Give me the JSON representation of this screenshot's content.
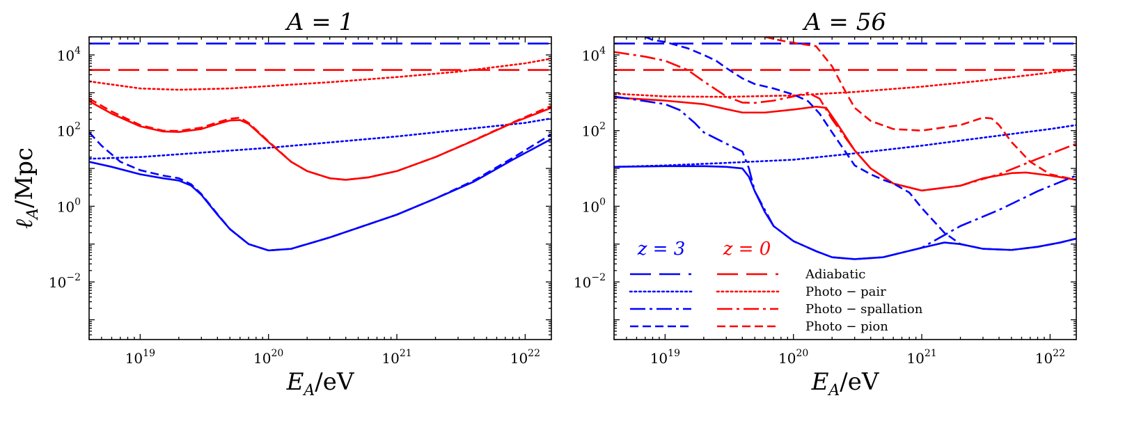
{
  "colors": {
    "z3": "#0000ff",
    "z0": "#ff0000"
  },
  "chart_data": [
    {
      "type": "line",
      "title": "A = 1",
      "xlabel": "E_A/eV",
      "ylabel": "ℓ_A/Mpc",
      "xscale": "log",
      "yscale": "log",
      "xlim": [
        4e+18,
        1.6e+22
      ],
      "ylim": [
        0.0003,
        30000
      ],
      "xticks": [
        {
          "value": 1e+19,
          "base": "10",
          "exp": "19"
        },
        {
          "value": 1e+20,
          "base": "10",
          "exp": "20"
        },
        {
          "value": 1e+21,
          "base": "10",
          "exp": "21"
        },
        {
          "value": 1e+22,
          "base": "10",
          "exp": "22"
        }
      ],
      "yticks": [
        {
          "value": 0.01,
          "base": "10",
          "exp": "−2"
        },
        {
          "value": 1,
          "base": "10",
          "exp": "0"
        },
        {
          "value": 100,
          "base": "10",
          "exp": "2"
        },
        {
          "value": 10000,
          "base": "10",
          "exp": "4"
        }
      ],
      "series": [
        {
          "name": "Adiabatic z=3",
          "color": "#0000ff",
          "style": "longdash",
          "x": [
            4e+18,
            1.6e+22
          ],
          "y": [
            20000,
            20000
          ]
        },
        {
          "name": "Adiabatic z=0",
          "color": "#ff0000",
          "style": "longdash",
          "x": [
            4e+18,
            1.6e+22
          ],
          "y": [
            4000,
            4000
          ]
        },
        {
          "name": "Photo-pair z=0",
          "color": "#ff0000",
          "style": "dotted",
          "x": [
            4e+18,
            1e+19,
            2e+19,
            5e+19,
            1e+20,
            3e+20,
            1e+21,
            3e+21,
            1e+22,
            1.6e+22
          ],
          "y": [
            2000,
            1300,
            1200,
            1300,
            1500,
            1900,
            2600,
            3600,
            6000,
            8000
          ]
        },
        {
          "name": "Photo-pair z=3",
          "color": "#0000ff",
          "style": "dotted",
          "x": [
            4e+18,
            1e+19,
            1e+20,
            1e+21,
            1e+22,
            1.6e+22
          ],
          "y": [
            18,
            20,
            35,
            70,
            160,
            210
          ]
        },
        {
          "name": "Total z=0",
          "color": "#ff0000",
          "style": "solid",
          "x": [
            4e+18,
            6e+18,
            1e+19,
            1.5e+19,
            2e+19,
            3e+19,
            4e+19,
            5e+19,
            6e+19,
            7e+19,
            8e+19,
            1e+20,
            1.5e+20,
            2e+20,
            3e+20,
            4e+20,
            6e+20,
            1e+21,
            2e+21,
            4e+21,
            8e+21,
            1.6e+22
          ],
          "y": [
            600,
            280,
            130,
            95,
            92,
            110,
            150,
            185,
            190,
            150,
            100,
            50,
            15,
            8.5,
            5.5,
            5,
            5.8,
            8.5,
            20,
            55,
            160,
            400
          ]
        },
        {
          "name": "Photo-pion z=0",
          "color": "#ff0000",
          "style": "dashed",
          "x": [
            4e+18,
            6e+18,
            1e+19,
            1.5e+19,
            2e+19,
            3e+19,
            4e+19,
            5e+19,
            6e+19,
            7e+19,
            8e+19,
            1e+20,
            1.5e+20,
            2e+20,
            3e+20,
            4e+20,
            6e+20,
            1e+21,
            2e+21,
            4e+21,
            8e+21,
            1.6e+22
          ],
          "y": [
            700,
            320,
            140,
            100,
            98,
            120,
            165,
            205,
            220,
            160,
            105,
            52,
            15,
            8.5,
            5.5,
            5,
            5.8,
            8.5,
            20,
            56,
            165,
            450
          ]
        },
        {
          "name": "Total z=3",
          "color": "#0000ff",
          "style": "solid",
          "x": [
            4e+18,
            6e+18,
            1e+19,
            1.5e+19,
            2e+19,
            2.5e+19,
            3e+19,
            4e+19,
            5e+19,
            7e+19,
            1e+20,
            1.5e+20,
            2e+20,
            3e+20,
            5e+20,
            1e+21,
            2e+21,
            4e+21,
            8e+21,
            1.6e+22
          ],
          "y": [
            15,
            11,
            7,
            5.5,
            4.8,
            3.5,
            2,
            0.6,
            0.25,
            0.1,
            0.068,
            0.075,
            0.1,
            0.15,
            0.27,
            0.6,
            1.6,
            4.5,
            17,
            60
          ]
        },
        {
          "name": "Photo-pion z=3",
          "color": "#0000ff",
          "style": "dashed",
          "x": [
            4e+18,
            5e+18,
            7e+18,
            1e+19,
            1.5e+19,
            2e+19,
            2.5e+19,
            3e+19,
            4e+19,
            5e+19,
            7e+19,
            1e+20,
            1.5e+20,
            2e+20,
            3e+20,
            5e+20,
            1e+21,
            2e+21,
            4e+21,
            8e+21,
            1.6e+22
          ],
          "y": [
            90,
            40,
            15,
            9,
            6.5,
            5.5,
            3.8,
            2.1,
            0.62,
            0.25,
            0.1,
            0.068,
            0.075,
            0.1,
            0.15,
            0.27,
            0.6,
            1.6,
            4.8,
            19,
            80
          ]
        }
      ]
    },
    {
      "type": "line",
      "title": "A = 56",
      "xlabel": "E_A/eV",
      "xscale": "log",
      "yscale": "log",
      "xlim": [
        4e+18,
        1.6e+22
      ],
      "ylim": [
        0.0003,
        30000
      ],
      "xticks": [
        {
          "value": 1e+19,
          "base": "10",
          "exp": "19"
        },
        {
          "value": 1e+20,
          "base": "10",
          "exp": "20"
        },
        {
          "value": 1e+21,
          "base": "10",
          "exp": "21"
        },
        {
          "value": 1e+22,
          "base": "10",
          "exp": "22"
        }
      ],
      "yticks": [
        {
          "value": 0.01,
          "base": "10",
          "exp": "−2"
        },
        {
          "value": 1,
          "base": "10",
          "exp": "0"
        },
        {
          "value": 100,
          "base": "10",
          "exp": "2"
        },
        {
          "value": 10000,
          "base": "10",
          "exp": "4"
        }
      ],
      "series": [
        {
          "name": "Adiabatic z=3",
          "color": "#0000ff",
          "style": "longdash",
          "x": [
            4e+18,
            1.6e+22
          ],
          "y": [
            20000,
            20000
          ]
        },
        {
          "name": "Adiabatic z=0",
          "color": "#ff0000",
          "style": "longdash",
          "x": [
            4e+18,
            1.6e+22
          ],
          "y": [
            4000,
            4000
          ]
        },
        {
          "name": "Photo-pair z=0",
          "color": "#ff0000",
          "style": "dotted",
          "x": [
            4e+18,
            1e+19,
            3e+19,
            1e+20,
            3e+20,
            1e+21,
            3e+21,
            1e+22,
            1.6e+22
          ],
          "y": [
            950,
            800,
            780,
            850,
            1050,
            1450,
            2100,
            3400,
            4200
          ]
        },
        {
          "name": "Photo-pair z=3",
          "color": "#0000ff",
          "style": "dotted",
          "x": [
            4e+18,
            1e+19,
            3e+19,
            1e+20,
            3e+20,
            1e+21,
            3e+21,
            1e+22,
            1.6e+22
          ],
          "y": [
            11,
            12,
            14,
            17,
            25,
            40,
            65,
            110,
            140
          ]
        },
        {
          "name": "Photo-spallation z=0",
          "color": "#ff0000",
          "style": "dashdot",
          "x": [
            4e+18,
            7e+18,
            1e+19,
            1.5e+19,
            2e+19,
            3e+19,
            4e+19,
            5e+19,
            7e+19,
            1e+20,
            1.3e+20,
            1.6e+20,
            2e+20,
            2.5e+20,
            3e+20,
            4e+20,
            6e+20,
            1e+21,
            2e+21,
            4e+21,
            8e+21,
            1.6e+22
          ],
          "y": [
            12000,
            9000,
            7000,
            4000,
            2000,
            800,
            550,
            540,
            620,
            800,
            1000,
            700,
            200,
            70,
            30,
            10,
            4,
            2.6,
            3.5,
            7,
            18,
            45
          ]
        },
        {
          "name": "Total z=0",
          "color": "#ff0000",
          "style": "solid",
          "x": [
            4e+18,
            1e+19,
            2e+19,
            3e+19,
            4e+19,
            6e+19,
            1e+20,
            1.5e+20,
            1.8e+20,
            2.2e+20,
            3e+20,
            4e+20,
            6e+20,
            1e+21,
            2e+21,
            3e+21,
            5e+21,
            6.5e+21,
            1e+22,
            1.6e+22
          ],
          "y": [
            750,
            620,
            500,
            370,
            300,
            300,
            360,
            430,
            400,
            150,
            30,
            10,
            4,
            2.6,
            3.5,
            5.5,
            7.5,
            7.8,
            6.5,
            5
          ]
        },
        {
          "name": "Photo-pion z=0",
          "color": "#ff0000",
          "style": "dashed",
          "x": [
            6e+19,
            8e+19,
            1e+20,
            1.5e+20,
            2e+20,
            2.5e+20,
            3e+20,
            4e+20,
            6e+20,
            1e+21,
            2e+21,
            3e+21,
            3.5e+21,
            4e+21,
            5e+21,
            7e+21,
            1e+22,
            1.6e+22
          ],
          "y": [
            30000,
            24000,
            21000,
            17000,
            5000,
            1200,
            400,
            180,
            110,
            100,
            140,
            220,
            210,
            140,
            50,
            15,
            7,
            5
          ]
        },
        {
          "name": "Photo-spallation z=3",
          "color": "#0000ff",
          "style": "dashdot",
          "x": [
            4e+18,
            7e+18,
            1e+19,
            1.3e+19,
            1.7e+19,
            2e+19,
            3e+19,
            4e+19,
            4.5e+19,
            5e+19,
            7e+19,
            1e+20,
            1.5e+20,
            2e+20,
            3e+20,
            5e+20,
            1e+21,
            2e+21,
            4e+21,
            8e+21,
            1.6e+22
          ],
          "y": [
            800,
            600,
            500,
            350,
            160,
            90,
            45,
            28,
            10,
            2.5,
            0.3,
            0.12,
            0.065,
            0.045,
            0.04,
            0.045,
            0.08,
            0.3,
            0.8,
            2.5,
            6.5
          ]
        },
        {
          "name": "Photo-pion z=3",
          "color": "#0000ff",
          "style": "dashed",
          "x": [
            7e+18,
            8e+18,
            1e+19,
            1.5e+19,
            2e+19,
            2.5e+19,
            3e+19,
            4e+19,
            5e+19,
            7e+19,
            1e+20,
            1.3e+20,
            1.6e+20,
            2e+20,
            2.5e+20,
            3e+20,
            4e+20,
            5e+20,
            6e+20,
            8e+20,
            1e+21,
            1.5e+21,
            2e+21,
            3e+21,
            5e+21,
            8e+21,
            1.2e+22,
            1.6e+22
          ],
          "y": [
            30000,
            25000,
            22000,
            15000,
            10000,
            7000,
            4500,
            2400,
            1700,
            1300,
            900,
            600,
            280,
            90,
            30,
            12,
            7,
            5,
            4,
            2.3,
            0.9,
            0.2,
            0.1,
            0.075,
            0.07,
            0.085,
            0.11,
            0.14
          ]
        },
        {
          "name": "Total z=3",
          "color": "#0000ff",
          "style": "solid",
          "x": [
            4e+18,
            1e+19,
            2e+19,
            3e+19,
            4e+19,
            4.5e+19,
            5e+19,
            6e+19,
            7e+19,
            1e+20,
            1.5e+20,
            2e+20,
            3e+20,
            5e+20,
            1e+21,
            1.5e+21,
            2e+21,
            3e+21,
            5e+21,
            8e+21,
            1.2e+22,
            1.6e+22
          ],
          "y": [
            11,
            11.5,
            11.5,
            11,
            10,
            6,
            2.5,
            0.7,
            0.3,
            0.12,
            0.065,
            0.045,
            0.04,
            0.045,
            0.08,
            0.11,
            0.1,
            0.075,
            0.07,
            0.085,
            0.11,
            0.14
          ]
        }
      ]
    }
  ],
  "legend": {
    "z3_label": "z = 3",
    "z0_label": "z = 0",
    "entries": [
      {
        "style": "longdash",
        "label": "Adiabatic"
      },
      {
        "style": "dotted",
        "label": "Photo − pair"
      },
      {
        "style": "dashdot",
        "label": "Photo − spallation"
      },
      {
        "style": "dashed",
        "label": "Photo − pion"
      }
    ]
  }
}
